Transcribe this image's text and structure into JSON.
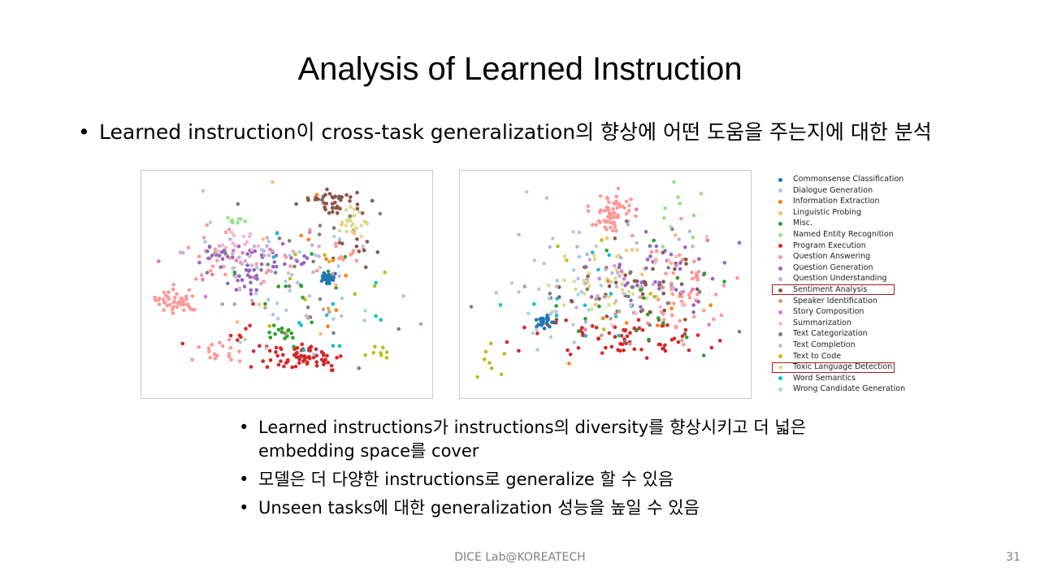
{
  "slide": {
    "title": "Analysis of Learned Instruction",
    "main_bullet": "Learned instruction이 cross-task generalization의 향상에 어떤 도움을 주는지에 대한 분석",
    "sub_bullets": [
      "Learned instructions가 instructions의 diversity를 향상시키고 더 넓은 embedding space를 cover",
      "모델은 더 다양한 instructions로 generalize 할 수 있음",
      "Unseen tasks에 대한 generalization 성능을 높일 수 있음"
    ],
    "footer": "DICE Lab@KOREATECH",
    "page_number": "31"
  },
  "chart_data": {
    "type": "scatter",
    "legend_placement": "right",
    "highlight_color": "#a31a1a",
    "legend": [
      {
        "name": "Commonsense Classification",
        "color": "#1f77b4",
        "highlighted": false
      },
      {
        "name": "Dialogue Generation",
        "color": "#aec7e8",
        "highlighted": false
      },
      {
        "name": "Information Extraction",
        "color": "#ff7f0e",
        "highlighted": false
      },
      {
        "name": "Linguistic Probing",
        "color": "#ffbb78",
        "highlighted": false
      },
      {
        "name": "Misc.",
        "color": "#2ca02c",
        "highlighted": false
      },
      {
        "name": "Named Entity Recognition",
        "color": "#98df8a",
        "highlighted": false
      },
      {
        "name": "Program Execution",
        "color": "#d62728",
        "highlighted": false
      },
      {
        "name": "Question Answering",
        "color": "#ff9896",
        "highlighted": false
      },
      {
        "name": "Question Generation",
        "color": "#9467bd",
        "highlighted": false
      },
      {
        "name": "Question Understanding",
        "color": "#c5b0d5",
        "highlighted": false
      },
      {
        "name": "Sentiment Analysis",
        "color": "#8c564b",
        "highlighted": true
      },
      {
        "name": "Speaker Identification",
        "color": "#c49c94",
        "highlighted": false
      },
      {
        "name": "Story Composition",
        "color": "#e377c2",
        "highlighted": false
      },
      {
        "name": "Summarization",
        "color": "#f7b6d2",
        "highlighted": false
      },
      {
        "name": "Text Categorization",
        "color": "#7f7f7f",
        "highlighted": false
      },
      {
        "name": "Text Completion",
        "color": "#c7c7c7",
        "highlighted": false
      },
      {
        "name": "Text to Code",
        "color": "#bcbd22",
        "highlighted": false
      },
      {
        "name": "Toxic Language Detection",
        "color": "#dbdb8d",
        "highlighted": true
      },
      {
        "name": "Word Semantics",
        "color": "#17becf",
        "highlighted": false
      },
      {
        "name": "Wrong Candidate Generation",
        "color": "#9edae5",
        "highlighted": false
      }
    ],
    "panels": [
      {
        "id": "left",
        "xlim": [
          0,
          100
        ],
        "ylim": [
          0,
          100
        ],
        "clusters": [
          {
            "cat": 7,
            "cx": 9,
            "cy": 58,
            "sx": 4,
            "sy": 3,
            "n": 45
          },
          {
            "cat": 7,
            "cx": 25,
            "cy": 83,
            "sx": 5,
            "sy": 3,
            "n": 18
          },
          {
            "cat": 7,
            "cx": 40,
            "cy": 42,
            "sx": 12,
            "sy": 4,
            "n": 16
          },
          {
            "cat": 7,
            "cx": 70,
            "cy": 35,
            "sx": 4,
            "sy": 4,
            "n": 10
          },
          {
            "cat": 7,
            "cx": 22,
            "cy": 30,
            "sx": 5,
            "sy": 8,
            "n": 14
          },
          {
            "cat": 6,
            "cx": 55,
            "cy": 86,
            "sx": 8,
            "sy": 4,
            "n": 70
          },
          {
            "cat": 6,
            "cx": 32,
            "cy": 72,
            "sx": 6,
            "sy": 6,
            "n": 8
          },
          {
            "cat": 0,
            "cx": 65,
            "cy": 47,
            "sx": 1.1,
            "sy": 1.1,
            "n": 38
          },
          {
            "cat": 10,
            "cx": 68,
            "cy": 10,
            "sx": 5,
            "sy": 3,
            "n": 40
          },
          {
            "cat": 10,
            "cx": 75,
            "cy": 30,
            "sx": 5,
            "sy": 5,
            "n": 12
          },
          {
            "cat": 17,
            "cx": 75,
            "cy": 20,
            "sx": 3,
            "sy": 3,
            "n": 25
          },
          {
            "cat": 8,
            "cx": 35,
            "cy": 43,
            "sx": 6,
            "sy": 5,
            "n": 32
          },
          {
            "cat": 8,
            "cx": 48,
            "cy": 37,
            "sx": 8,
            "sy": 3,
            "n": 15
          },
          {
            "cat": 8,
            "cx": 23,
            "cy": 36,
            "sx": 4,
            "sy": 4,
            "n": 12
          },
          {
            "cat": 9,
            "cx": 44,
            "cy": 35,
            "sx": 16,
            "sy": 7,
            "n": 30
          },
          {
            "cat": 13,
            "cx": 30,
            "cy": 28,
            "sx": 6,
            "sy": 4,
            "n": 15
          },
          {
            "cat": 4,
            "cx": 48,
            "cy": 73,
            "sx": 3,
            "sy": 2,
            "n": 14
          },
          {
            "cat": 4,
            "cx": 57,
            "cy": 55,
            "sx": 10,
            "sy": 12,
            "n": 14
          },
          {
            "cat": 1,
            "cx": 55,
            "cy": 45,
            "sx": 16,
            "sy": 16,
            "n": 25
          },
          {
            "cat": 5,
            "cx": 32,
            "cy": 19,
            "sx": 2.5,
            "sy": 1.5,
            "n": 8
          },
          {
            "cat": 16,
            "cx": 85,
            "cy": 83,
            "sx": 2,
            "sy": 1.5,
            "n": 8
          },
          {
            "cat": 16,
            "cx": 65,
            "cy": 55,
            "sx": 14,
            "sy": 14,
            "n": 10
          },
          {
            "cat": 14,
            "cx": 65,
            "cy": 48,
            "sx": 20,
            "sy": 18,
            "n": 20
          },
          {
            "cat": 18,
            "cx": 65,
            "cy": 58,
            "sx": 14,
            "sy": 16,
            "n": 12
          },
          {
            "cat": 2,
            "cx": 60,
            "cy": 45,
            "sx": 18,
            "sy": 16,
            "n": 8
          },
          {
            "cat": 3,
            "cx": 55,
            "cy": 50,
            "sx": 18,
            "sy": 16,
            "n": 8
          },
          {
            "cat": 12,
            "cx": 30,
            "cy": 38,
            "sx": 12,
            "sy": 8,
            "n": 10
          },
          {
            "cat": 11,
            "cx": 40,
            "cy": 55,
            "sx": 20,
            "sy": 18,
            "n": 10
          },
          {
            "cat": 15,
            "cx": 45,
            "cy": 50,
            "sx": 20,
            "sy": 18,
            "n": 10
          },
          {
            "cat": 19,
            "cx": 58,
            "cy": 58,
            "sx": 16,
            "sy": 14,
            "n": 6
          }
        ]
      },
      {
        "id": "right",
        "xlim": [
          0,
          100
        ],
        "ylim": [
          0,
          100
        ],
        "clusters": [
          {
            "cat": 7,
            "cx": 52,
            "cy": 14,
            "sx": 4,
            "sy": 6,
            "n": 65
          },
          {
            "cat": 7,
            "cx": 80,
            "cy": 55,
            "sx": 9,
            "sy": 13,
            "n": 55
          },
          {
            "cat": 6,
            "cx": 57,
            "cy": 77,
            "sx": 15,
            "sy": 5,
            "n": 65
          },
          {
            "cat": 0,
            "cx": 26,
            "cy": 68,
            "sx": 2,
            "sy": 1.5,
            "n": 24
          },
          {
            "cat": 17,
            "cx": 47,
            "cy": 48,
            "sx": 10,
            "sy": 8,
            "n": 35
          },
          {
            "cat": 10,
            "cx": 60,
            "cy": 52,
            "sx": 14,
            "sy": 11,
            "n": 45
          },
          {
            "cat": 8,
            "cx": 72,
            "cy": 40,
            "sx": 13,
            "sy": 11,
            "n": 38
          },
          {
            "cat": 9,
            "cx": 58,
            "cy": 45,
            "sx": 18,
            "sy": 15,
            "n": 30
          },
          {
            "cat": 4,
            "cx": 60,
            "cy": 60,
            "sx": 16,
            "sy": 12,
            "n": 18
          },
          {
            "cat": 16,
            "cx": 8,
            "cy": 88,
            "sx": 3,
            "sy": 6,
            "n": 8
          },
          {
            "cat": 16,
            "cx": 60,
            "cy": 60,
            "sx": 18,
            "sy": 15,
            "n": 6
          },
          {
            "cat": 18,
            "cx": 40,
            "cy": 55,
            "sx": 15,
            "sy": 12,
            "n": 12
          },
          {
            "cat": 5,
            "cx": 75,
            "cy": 14,
            "sx": 5,
            "sy": 8,
            "n": 10
          },
          {
            "cat": 14,
            "cx": 55,
            "cy": 55,
            "sx": 20,
            "sy": 15,
            "n": 18
          },
          {
            "cat": 1,
            "cx": 35,
            "cy": 55,
            "sx": 15,
            "sy": 15,
            "n": 18
          },
          {
            "cat": 2,
            "cx": 62,
            "cy": 55,
            "sx": 16,
            "sy": 15,
            "n": 7
          },
          {
            "cat": 3,
            "cx": 50,
            "cy": 40,
            "sx": 15,
            "sy": 12,
            "n": 8
          },
          {
            "cat": 12,
            "cx": 70,
            "cy": 50,
            "sx": 16,
            "sy": 14,
            "n": 10
          },
          {
            "cat": 11,
            "cx": 60,
            "cy": 58,
            "sx": 18,
            "sy": 14,
            "n": 10
          },
          {
            "cat": 15,
            "cx": 48,
            "cy": 50,
            "sx": 20,
            "sy": 16,
            "n": 10
          },
          {
            "cat": 13,
            "cx": 72,
            "cy": 45,
            "sx": 14,
            "sy": 12,
            "n": 8
          },
          {
            "cat": 19,
            "cx": 45,
            "cy": 55,
            "sx": 16,
            "sy": 14,
            "n": 6
          }
        ]
      }
    ]
  }
}
